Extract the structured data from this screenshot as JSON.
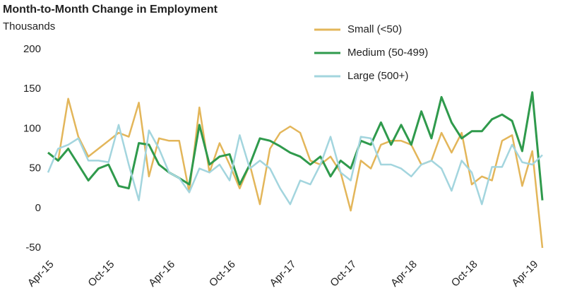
{
  "chart_data": {
    "type": "line",
    "title": "Month-to-Month Change in Employment",
    "subtitle": "Thousands",
    "categories": [
      "Apr-15",
      null,
      null,
      null,
      null,
      null,
      "Oct-15",
      null,
      null,
      null,
      null,
      null,
      "Apr-16",
      null,
      null,
      null,
      null,
      null,
      "Oct-16",
      null,
      null,
      null,
      null,
      null,
      "Apr-17",
      null,
      null,
      null,
      null,
      null,
      "Oct-17",
      null,
      null,
      null,
      null,
      null,
      "Apr-18",
      null,
      null,
      null,
      null,
      null,
      "Oct-18",
      null,
      null,
      null,
      null,
      null,
      "Apr-19",
      null
    ],
    "series": [
      {
        "name": "Small (<50)",
        "color": "#e3b65a",
        "values": [
          70,
          60,
          138,
          90,
          65,
          75,
          85,
          95,
          90,
          133,
          40,
          88,
          85,
          85,
          20,
          127,
          45,
          82,
          55,
          25,
          55,
          5,
          75,
          95,
          103,
          95,
          60,
          55,
          65,
          45,
          -3,
          60,
          50,
          80,
          85,
          85,
          80,
          55,
          60,
          95,
          70,
          95,
          30,
          40,
          35,
          85,
          92,
          28,
          72,
          -50
        ]
      },
      {
        "name": "Medium (50-499)",
        "color": "#2f9a4c",
        "values": [
          70,
          60,
          75,
          55,
          35,
          50,
          55,
          28,
          25,
          82,
          80,
          55,
          45,
          38,
          30,
          105,
          55,
          65,
          68,
          30,
          55,
          88,
          85,
          78,
          70,
          65,
          55,
          65,
          40,
          60,
          50,
          85,
          80,
          108,
          80,
          105,
          80,
          122,
          88,
          140,
          108,
          88,
          97,
          97,
          112,
          118,
          110,
          72,
          146,
          10
        ]
      },
      {
        "name": "Large (500+)",
        "color": "#a3d5de",
        "values": [
          45,
          75,
          80,
          88,
          60,
          60,
          58,
          105,
          55,
          10,
          98,
          75,
          45,
          38,
          20,
          50,
          45,
          55,
          35,
          92,
          50,
          60,
          50,
          25,
          5,
          35,
          30,
          55,
          90,
          45,
          35,
          90,
          88,
          55,
          55,
          50,
          40,
          55,
          60,
          50,
          22,
          60,
          45,
          5,
          52,
          52,
          80,
          58,
          55,
          67
        ]
      }
    ],
    "ylim": [
      -50,
      200
    ],
    "yticks": [
      -50,
      0,
      50,
      100,
      150,
      200
    ],
    "grid": false
  }
}
